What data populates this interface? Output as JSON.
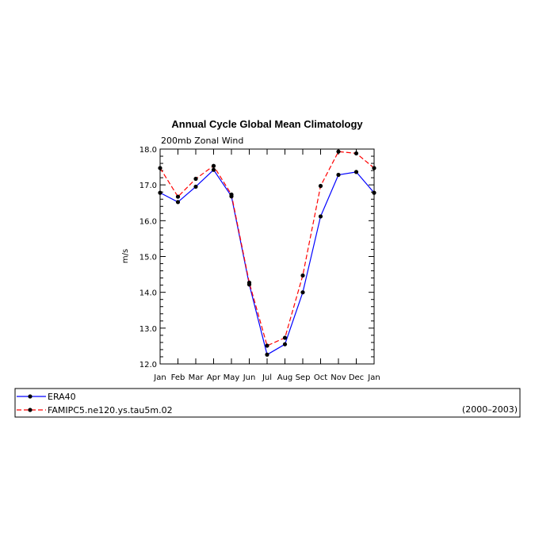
{
  "chart_data": {
    "type": "line",
    "title": "Annual Cycle Global Mean Climatology",
    "subtitle": "200mb Zonal Wind",
    "ylabel": "m/s",
    "xlabel": "",
    "categories": [
      "Jan",
      "Feb",
      "Mar",
      "Apr",
      "May",
      "Jun",
      "Jul",
      "Aug",
      "Sep",
      "Oct",
      "Nov",
      "Dec",
      "Jan"
    ],
    "ylim": [
      12.0,
      18.0
    ],
    "yticks": [
      "12.0",
      "13.0",
      "14.0",
      "15.0",
      "16.0",
      "17.0",
      "18.0"
    ],
    "series": [
      {
        "name": "ERA40",
        "color": "#0000ff",
        "dash": "solid",
        "values": [
          16.78,
          16.52,
          16.95,
          17.42,
          16.68,
          14.22,
          12.26,
          12.55,
          14.0,
          16.12,
          17.28,
          17.36,
          16.78
        ]
      },
      {
        "name": "FAMIPC5.ne120.ys.tau5m.02",
        "color": "#ff0000",
        "dash": "dashed",
        "values": [
          17.47,
          16.67,
          17.17,
          17.53,
          16.73,
          14.27,
          12.51,
          12.73,
          14.47,
          16.97,
          17.93,
          17.88,
          17.47
        ]
      }
    ],
    "legend_note": "(2000–2003)",
    "legend_position": "bottom"
  }
}
